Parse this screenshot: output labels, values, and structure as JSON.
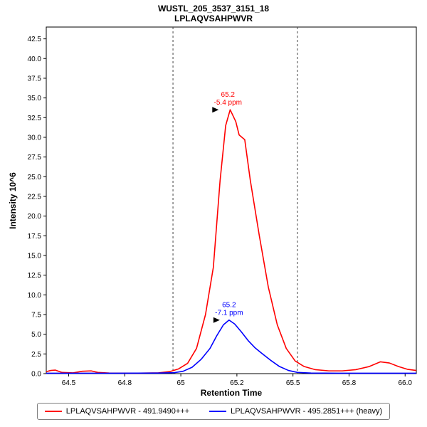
{
  "chart_data": {
    "type": "line",
    "title": "WUSTL_205_3537_3151_18",
    "subtitle": "LPLAQVSAHPWVR",
    "xlabel": "Retention Time",
    "ylabel": "Intensity 10^6",
    "xlim": [
      64.4,
      66.05
    ],
    "ylim": [
      0,
      44
    ],
    "x_ticks": [
      64.5,
      64.75,
      65.0,
      65.25,
      65.5,
      65.75,
      66.0
    ],
    "x_tick_labels": [
      "64.5",
      "64.8",
      "65",
      "65.2",
      "65.5",
      "65.8",
      "66.0"
    ],
    "y_ticks": [
      0.0,
      2.5,
      5.0,
      7.5,
      10.0,
      12.5,
      15.0,
      17.5,
      20.0,
      22.5,
      25.0,
      27.5,
      30.0,
      32.5,
      35.0,
      37.5,
      40.0,
      42.5
    ],
    "grid": false,
    "legend_position": "bottom",
    "peak_boundaries": [
      64.965,
      65.52
    ],
    "boundary_color": "#444444",
    "axis_color": "#000000",
    "series": [
      {
        "name": "LPLAQVSAHPWVR - 491.9490+++",
        "color": "#ff0000",
        "x": [
          64.4,
          64.42,
          64.44,
          64.47,
          64.52,
          64.56,
          64.6,
          64.63,
          64.68,
          64.75,
          64.82,
          64.9,
          64.95,
          64.99,
          65.03,
          65.07,
          65.11,
          65.145,
          65.175,
          65.2,
          65.22,
          65.245,
          65.26,
          65.285,
          65.31,
          65.35,
          65.39,
          65.43,
          65.47,
          65.51,
          65.55,
          65.6,
          65.66,
          65.72,
          65.78,
          65.84,
          65.89,
          65.93,
          65.97,
          66.01,
          66.05
        ],
        "y": [
          0.25,
          0.4,
          0.45,
          0.15,
          0.1,
          0.3,
          0.35,
          0.15,
          0.08,
          0.06,
          0.06,
          0.1,
          0.25,
          0.6,
          1.3,
          3.2,
          7.5,
          13.5,
          24.5,
          31.5,
          33.5,
          32.0,
          30.3,
          29.7,
          24.5,
          17.5,
          11.0,
          6.2,
          3.2,
          1.6,
          0.9,
          0.5,
          0.35,
          0.35,
          0.5,
          0.9,
          1.5,
          1.35,
          0.9,
          0.55,
          0.4
        ],
        "annotation": {
          "x": 65.21,
          "y": 33.5,
          "lines": [
            "65.2",
            "-5.4 ppm"
          ]
        }
      },
      {
        "name": "LPLAQVSAHPWVR - 495.2851+++ (heavy)",
        "color": "#0000ff",
        "x": [
          64.4,
          64.7,
          64.9,
          64.97,
          65.01,
          65.05,
          65.09,
          65.13,
          65.16,
          65.19,
          65.215,
          65.24,
          65.27,
          65.3,
          65.33,
          65.36,
          65.4,
          65.44,
          65.48,
          65.52,
          65.58,
          65.7,
          65.9,
          66.05
        ],
        "y": [
          0.05,
          0.05,
          0.07,
          0.12,
          0.3,
          0.8,
          1.8,
          3.2,
          4.8,
          6.2,
          6.8,
          6.3,
          5.3,
          4.2,
          3.3,
          2.6,
          1.7,
          0.9,
          0.4,
          0.15,
          0.07,
          0.05,
          0.05,
          0.05
        ],
        "annotation": {
          "x": 65.215,
          "y": 6.8,
          "lines": [
            "65.2",
            "-7.1 ppm"
          ]
        }
      }
    ]
  }
}
